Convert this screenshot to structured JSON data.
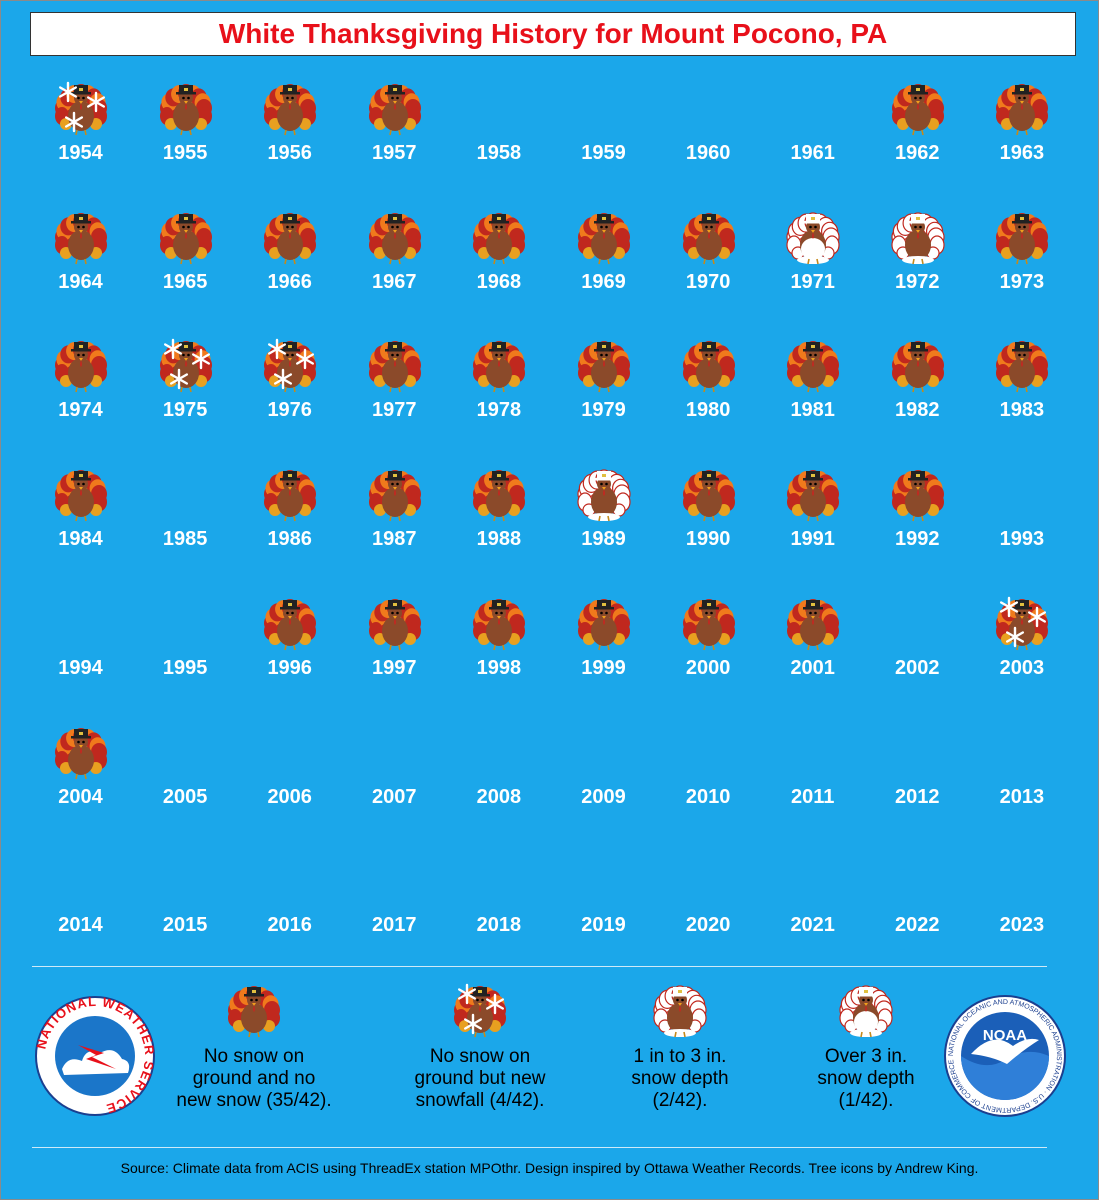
{
  "title": "White Thanksgiving History for Mount Pocono, PA",
  "years": [
    {
      "year": "1954",
      "cat": "snowfall"
    },
    {
      "year": "1955",
      "cat": "none"
    },
    {
      "year": "1956",
      "cat": "none"
    },
    {
      "year": "1957",
      "cat": "none"
    },
    {
      "year": "1958",
      "cat": ""
    },
    {
      "year": "1959",
      "cat": ""
    },
    {
      "year": "1960",
      "cat": ""
    },
    {
      "year": "1961",
      "cat": ""
    },
    {
      "year": "1962",
      "cat": "none"
    },
    {
      "year": "1963",
      "cat": "none"
    },
    {
      "year": "1964",
      "cat": "none"
    },
    {
      "year": "1965",
      "cat": "none"
    },
    {
      "year": "1966",
      "cat": "none"
    },
    {
      "year": "1967",
      "cat": "none"
    },
    {
      "year": "1968",
      "cat": "none"
    },
    {
      "year": "1969",
      "cat": "none"
    },
    {
      "year": "1970",
      "cat": "none"
    },
    {
      "year": "1971",
      "cat": "over3"
    },
    {
      "year": "1972",
      "cat": "depth1to3"
    },
    {
      "year": "1973",
      "cat": "none"
    },
    {
      "year": "1974",
      "cat": "none"
    },
    {
      "year": "1975",
      "cat": "snowfall"
    },
    {
      "year": "1976",
      "cat": "snowfall"
    },
    {
      "year": "1977",
      "cat": "none"
    },
    {
      "year": "1978",
      "cat": "none"
    },
    {
      "year": "1979",
      "cat": "none"
    },
    {
      "year": "1980",
      "cat": "none"
    },
    {
      "year": "1981",
      "cat": "none"
    },
    {
      "year": "1982",
      "cat": "none"
    },
    {
      "year": "1983",
      "cat": "none"
    },
    {
      "year": "1984",
      "cat": "none"
    },
    {
      "year": "1985",
      "cat": ""
    },
    {
      "year": "1986",
      "cat": "none"
    },
    {
      "year": "1987",
      "cat": "none"
    },
    {
      "year": "1988",
      "cat": "none"
    },
    {
      "year": "1989",
      "cat": "depth1to3"
    },
    {
      "year": "1990",
      "cat": "none"
    },
    {
      "year": "1991",
      "cat": "none"
    },
    {
      "year": "1992",
      "cat": "none"
    },
    {
      "year": "1993",
      "cat": ""
    },
    {
      "year": "1994",
      "cat": ""
    },
    {
      "year": "1995",
      "cat": ""
    },
    {
      "year": "1996",
      "cat": "none"
    },
    {
      "year": "1997",
      "cat": "none"
    },
    {
      "year": "1998",
      "cat": "none"
    },
    {
      "year": "1999",
      "cat": "none"
    },
    {
      "year": "2000",
      "cat": "none"
    },
    {
      "year": "2001",
      "cat": "none"
    },
    {
      "year": "2002",
      "cat": ""
    },
    {
      "year": "2003",
      "cat": "snowfall"
    },
    {
      "year": "2004",
      "cat": "none"
    },
    {
      "year": "2005",
      "cat": ""
    },
    {
      "year": "2006",
      "cat": ""
    },
    {
      "year": "2007",
      "cat": ""
    },
    {
      "year": "2008",
      "cat": ""
    },
    {
      "year": "2009",
      "cat": ""
    },
    {
      "year": "2010",
      "cat": ""
    },
    {
      "year": "2011",
      "cat": ""
    },
    {
      "year": "2012",
      "cat": ""
    },
    {
      "year": "2013",
      "cat": ""
    },
    {
      "year": "2014",
      "cat": ""
    },
    {
      "year": "2015",
      "cat": ""
    },
    {
      "year": "2016",
      "cat": ""
    },
    {
      "year": "2017",
      "cat": ""
    },
    {
      "year": "2018",
      "cat": ""
    },
    {
      "year": "2019",
      "cat": ""
    },
    {
      "year": "2020",
      "cat": ""
    },
    {
      "year": "2021",
      "cat": ""
    },
    {
      "year": "2022",
      "cat": ""
    },
    {
      "year": "2023",
      "cat": ""
    }
  ],
  "legend": [
    {
      "cat": "none",
      "lines": [
        "No snow on",
        "ground and no",
        "new snow (35/42)."
      ]
    },
    {
      "cat": "snowfall",
      "lines": [
        "No snow on",
        "ground but new",
        "snowfall (4/42)."
      ]
    },
    {
      "cat": "depth1to3",
      "lines": [
        "1 in to 3 in.",
        "snow depth",
        "(2/42)."
      ]
    },
    {
      "cat": "over3",
      "lines": [
        "Over 3 in.",
        "snow depth",
        "(1/42)."
      ]
    }
  ],
  "source": "Source: Climate data from ACIS using ThreadEx station MPOthr. Design inspired by Ottawa Weather Records. Tree icons by Andrew King.",
  "nws_logo_text": "NATIONAL WEATHER SERVICE",
  "noaa_logo_text": "NOAA",
  "noaa_ring_text": "NATIONAL OCEANIC AND ATMOSPHERIC ADMINISTRATION · U.S. DEPARTMENT OF COMMERCE",
  "colors": {
    "background": "#1ba7ea",
    "title": "#e8101a",
    "body": "#8b4a2a",
    "feather_red": "#c0281e",
    "feather_orange": "#f07a1c",
    "hat": "#222222"
  }
}
